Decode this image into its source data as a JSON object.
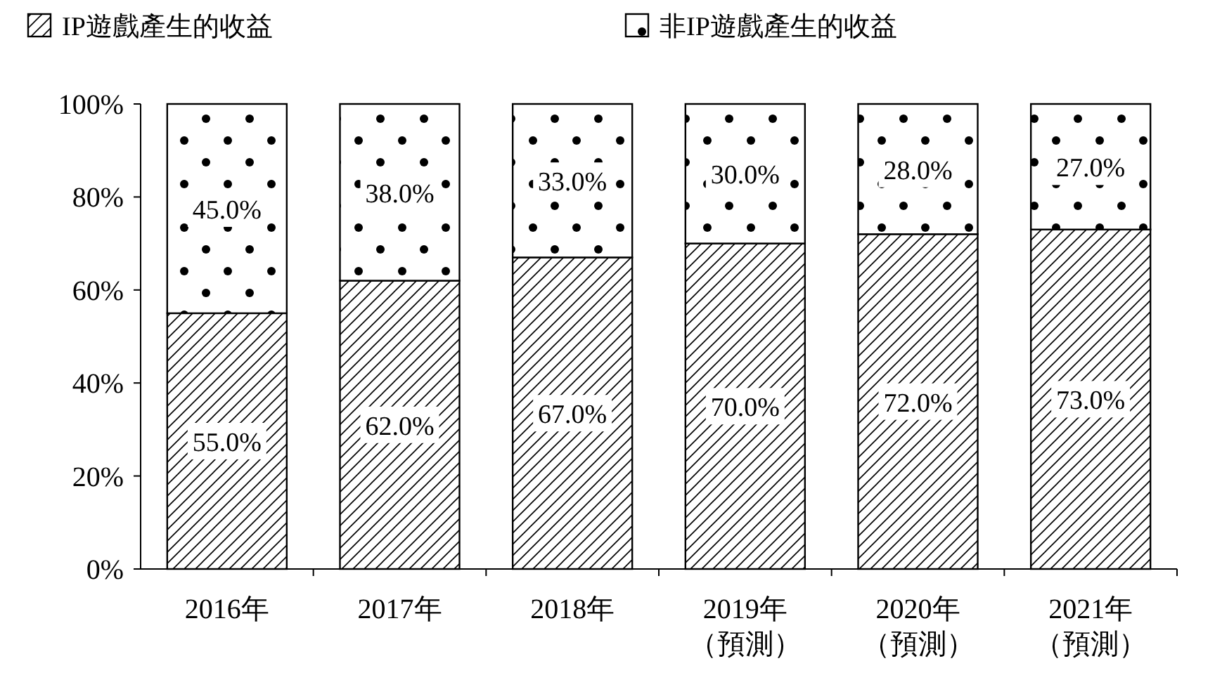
{
  "chart_data": {
    "type": "bar",
    "stacked": true,
    "categories": [
      "2016年",
      "2017年",
      "2018年",
      "2019年（預測）",
      "2020年（預測）",
      "2021年（預測）"
    ],
    "series": [
      {
        "name": "IP遊戲產生的收益",
        "color": "#000000",
        "values": [
          55,
          62,
          67,
          70,
          72,
          73
        ],
        "value_labels": [
          "55.0%",
          "62.0%",
          "67.0%",
          "70.0%",
          "72.0%",
          "73.0%"
        ]
      },
      {
        "name": "非IP遊戲產生的收益",
        "color": "#000000",
        "values": [
          45,
          38,
          33,
          30,
          28,
          27
        ],
        "value_labels": [
          "45.0%",
          "38.0%",
          "33.0%",
          "30.0%",
          "28.0%",
          "27.0%"
        ]
      }
    ],
    "ylim": [
      0,
      100
    ],
    "yticks": [
      {
        "value": 0,
        "label": "0%"
      },
      {
        "value": 20,
        "label": "20%"
      },
      {
        "value": 40,
        "label": "40%"
      },
      {
        "value": 60,
        "label": "60%"
      },
      {
        "value": 80,
        "label": "80%"
      },
      {
        "value": 100,
        "label": "100%"
      }
    ],
    "grid": false,
    "legend": "top"
  }
}
